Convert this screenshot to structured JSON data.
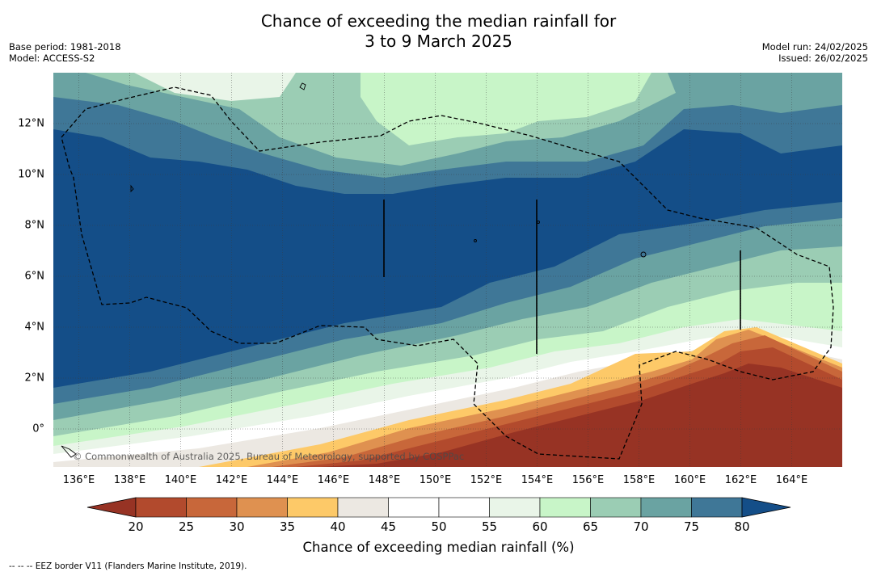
{
  "header": {
    "title_line1": "Chance of exceeding the median rainfall for",
    "title_line2": "3 to 9 March 2025",
    "base_period": "Base period: 1981-2018",
    "model": "Model: ACCESS-S2",
    "model_run": "Model run: 24/02/2025",
    "issued": "Issued: 26/02/2025"
  },
  "map": {
    "longitude_labels": [
      "136°E",
      "138°E",
      "140°E",
      "142°E",
      "144°E",
      "146°E",
      "148°E",
      "150°E",
      "152°E",
      "154°E",
      "156°E",
      "158°E",
      "160°E",
      "162°E",
      "164°E"
    ],
    "latitude_labels": [
      "12°N",
      "10°N",
      "8°N",
      "6°N",
      "4°N",
      "2°N",
      "0°"
    ],
    "lon_range": [
      135,
      166
    ],
    "lat_range": [
      -1.5,
      14
    ],
    "gridlines": true,
    "copyright": "© Commonwealth of Australia 2025, Bureau of Meteorology, supported by COSPPac"
  },
  "colorbar": {
    "label": "Chance of exceeding median rainfall (%)",
    "ticks": [
      "20",
      "25",
      "30",
      "35",
      "40",
      "45",
      "50",
      "55",
      "60",
      "65",
      "70",
      "75",
      "80"
    ],
    "colors": [
      "#973324",
      "#b24a2d",
      "#c8673a",
      "#df9150",
      "#fdc968",
      "#ece8e2",
      "#ffffff",
      "#ffffff",
      "#e9f5e8",
      "#c8f5c8",
      "#9bcdb4",
      "#6aa3a2",
      "#3f7797",
      "#144e88"
    ],
    "extend": "both"
  },
  "footer": {
    "legend_text": "--  --  -- EEZ border V11 (Flanders Marine Institute, 2019)."
  }
}
